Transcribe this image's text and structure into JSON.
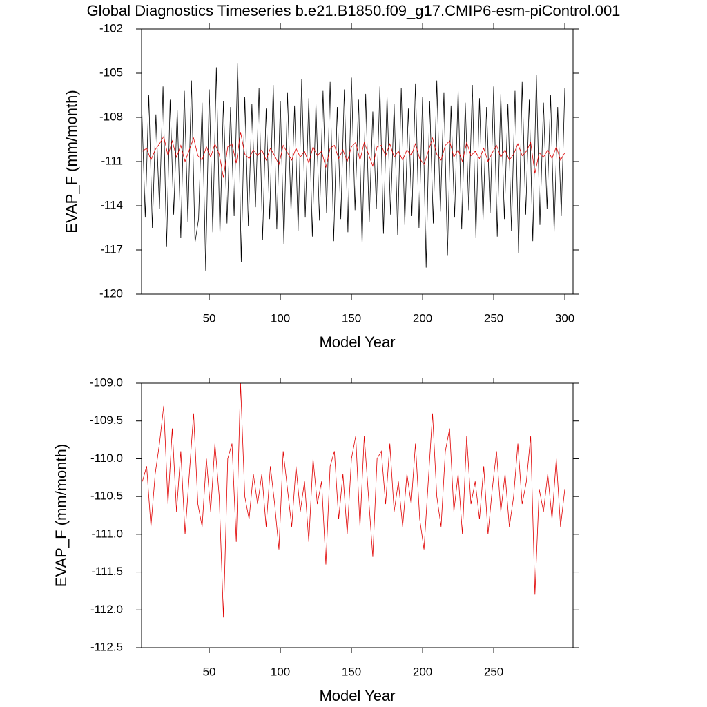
{
  "chart_data": [
    {
      "type": "line",
      "title": "Global Diagnostics Timeseries b.e21.B1850.f09_g17.CMIP6-esm-piControl.001",
      "x_label": "Model Year",
      "y_label": "EVAP_F (mm/month)",
      "xlim": [
        2.4,
        305.8
      ],
      "xticks": [
        50,
        100,
        150,
        200,
        250,
        300
      ],
      "ylim": [
        -120,
        -102
      ],
      "yticks": [
        -102,
        -105,
        -108,
        -111,
        -114,
        -117,
        -120
      ],
      "series": [
        {
          "color": "#000000",
          "x": [
            2.5,
            5,
            7.5,
            10,
            12.5,
            15,
            17.5,
            20,
            22.5,
            25,
            27.5,
            30,
            32.5,
            35,
            37.5,
            40,
            42.5,
            45,
            47.5,
            50,
            52.5,
            55,
            57.5,
            60,
            62.5,
            65,
            67.5,
            70,
            72.5,
            75,
            77.5,
            80,
            82.5,
            85,
            87.5,
            90,
            92.5,
            95,
            97.5,
            100,
            102.5,
            105,
            107.5,
            110,
            112.5,
            115,
            117.5,
            120,
            122.5,
            125,
            127.5,
            130,
            132.5,
            135,
            137.5,
            140,
            142.5,
            145,
            147.5,
            150,
            152.5,
            155,
            157.5,
            160,
            162.5,
            165,
            167.5,
            170,
            172.5,
            175,
            177.5,
            180,
            182.5,
            185,
            187.5,
            190,
            192.5,
            195,
            197.5,
            200,
            202.5,
            205,
            207.5,
            210,
            212.5,
            215,
            217.5,
            220,
            222.5,
            225,
            227.5,
            230,
            232.5,
            235,
            237.5,
            240,
            242.5,
            245,
            247.5,
            250,
            252.5,
            255,
            257.5,
            260,
            262.5,
            265,
            267.5,
            270,
            272.5,
            275,
            277.5,
            280,
            282.5,
            285,
            287.5,
            290,
            292.5,
            295,
            297.5,
            300
          ],
          "values": [
            -107.2,
            -114.8,
            -106.5,
            -115.5,
            -107.8,
            -114.2,
            -105.9,
            -116.8,
            -106.8,
            -114.6,
            -107.5,
            -116.2,
            -106.2,
            -115.1,
            -105.5,
            -116.5,
            -114.9,
            -107.0,
            -118.4,
            -106.1,
            -115.8,
            -104.6,
            -116.0,
            -106.9,
            -115.2,
            -107.3,
            -114.7,
            -104.3,
            -117.8,
            -106.6,
            -115.4,
            -107.1,
            -114.1,
            -106.0,
            -116.3,
            -107.4,
            -114.9,
            -105.8,
            -115.6,
            -106.9,
            -116.6,
            -106.3,
            -114.4,
            -107.2,
            -115.7,
            -105.4,
            -114.8,
            -106.7,
            -116.1,
            -107.0,
            -115.0,
            -106.2,
            -114.5,
            -105.6,
            -116.4,
            -107.3,
            -114.9,
            -106.1,
            -115.8,
            -105.3,
            -114.3,
            -106.8,
            -116.7,
            -106.4,
            -115.1,
            -107.6,
            -114.2,
            -105.9,
            -115.9,
            -106.5,
            -114.6,
            -107.1,
            -116.0,
            -106.0,
            -115.3,
            -107.4,
            -114.7,
            -105.7,
            -115.5,
            -106.6,
            -118.2,
            -106.9,
            -115.2,
            -105.5,
            -114.4,
            -106.3,
            -117.4,
            -107.2,
            -114.8,
            -106.1,
            -115.6,
            -107.0,
            -114.3,
            -105.8,
            -116.2,
            -106.7,
            -115.0,
            -107.3,
            -114.5,
            -105.9,
            -116.1,
            -106.4,
            -114.9,
            -107.1,
            -115.7,
            -106.2,
            -117.2,
            -105.6,
            -114.6,
            -106.8,
            -116.4,
            -105.1,
            -115.3,
            -107.0,
            -114.2,
            -106.5,
            -115.8,
            -107.3,
            -114.7,
            -106.0
          ]
        },
        {
          "color": "#e00000",
          "x": [
            3,
            6,
            9,
            12,
            15,
            18,
            21,
            24,
            27,
            30,
            33,
            36,
            39,
            42,
            45,
            48,
            51,
            54,
            57,
            60,
            63,
            66,
            69,
            72,
            75,
            78,
            81,
            84,
            87,
            90,
            93,
            96,
            99,
            102,
            105,
            108,
            111,
            114,
            117,
            120,
            123,
            126,
            129,
            132,
            135,
            138,
            141,
            144,
            147,
            150,
            153,
            156,
            159,
            162,
            165,
            168,
            171,
            174,
            177,
            180,
            183,
            186,
            189,
            192,
            195,
            198,
            201,
            204,
            207,
            210,
            213,
            216,
            219,
            222,
            225,
            228,
            231,
            234,
            237,
            240,
            243,
            246,
            249,
            252,
            255,
            258,
            261,
            264,
            267,
            270,
            273,
            276,
            279,
            282,
            285,
            288,
            291,
            294,
            297,
            300
          ],
          "values": [
            -110.3,
            -110.1,
            -110.9,
            -110.2,
            -109.8,
            -109.3,
            -110.6,
            -109.6,
            -110.7,
            -109.9,
            -111.0,
            -110.2,
            -109.4,
            -110.6,
            -110.9,
            -110.0,
            -110.7,
            -109.8,
            -110.5,
            -112.1,
            -110.0,
            -109.8,
            -111.1,
            -109.0,
            -110.5,
            -110.8,
            -110.2,
            -110.6,
            -110.2,
            -110.9,
            -110.1,
            -110.6,
            -111.2,
            -109.9,
            -110.4,
            -110.9,
            -110.1,
            -110.7,
            -110.3,
            -111.1,
            -110.0,
            -110.6,
            -110.3,
            -111.4,
            -110.1,
            -109.9,
            -110.8,
            -110.2,
            -111.0,
            -110.0,
            -109.7,
            -110.9,
            -109.7,
            -110.5,
            -111.3,
            -110.0,
            -109.9,
            -110.6,
            -109.8,
            -110.7,
            -110.3,
            -110.9,
            -110.2,
            -110.6,
            -109.8,
            -110.8,
            -111.2,
            -110.3,
            -109.4,
            -110.5,
            -110.9,
            -109.9,
            -109.6,
            -110.7,
            -110.2,
            -111.0,
            -109.7,
            -110.6,
            -110.3,
            -110.8,
            -110.1,
            -111.0,
            -110.4,
            -109.9,
            -110.7,
            -110.2,
            -110.9,
            -110.5,
            -109.8,
            -110.6,
            -110.3,
            -109.7,
            -111.8,
            -110.4,
            -110.7,
            -110.2,
            -110.8,
            -110.0,
            -110.9,
            -110.4
          ]
        }
      ]
    },
    {
      "type": "line",
      "x_label": "Model Year",
      "y_label": "EVAP_F (mm/month)",
      "xlim": [
        2.4,
        305.8
      ],
      "xticks": [
        50,
        100,
        150,
        200,
        250
      ],
      "ylim": [
        -112.5,
        -109
      ],
      "yticks": [
        {
          "value": -109,
          "label": "-109.0"
        },
        {
          "value": -109.5,
          "label": "-109.5"
        },
        {
          "value": -110,
          "label": "-110.0"
        },
        {
          "value": -110.5,
          "label": "-110.5"
        },
        {
          "value": -111,
          "label": "-111.0"
        },
        {
          "value": -111.5,
          "label": "-111.5"
        },
        {
          "value": -112,
          "label": "-112.0"
        },
        {
          "value": -112.5,
          "label": "-112.5"
        }
      ],
      "series": [
        {
          "color": "#e00000",
          "x": [
            3,
            6,
            9,
            12,
            15,
            18,
            21,
            24,
            27,
            30,
            33,
            36,
            39,
            42,
            45,
            48,
            51,
            54,
            57,
            60,
            63,
            66,
            69,
            72,
            75,
            78,
            81,
            84,
            87,
            90,
            93,
            96,
            99,
            102,
            105,
            108,
            111,
            114,
            117,
            120,
            123,
            126,
            129,
            132,
            135,
            138,
            141,
            144,
            147,
            150,
            153,
            156,
            159,
            162,
            165,
            168,
            171,
            174,
            177,
            180,
            183,
            186,
            189,
            192,
            195,
            198,
            201,
            204,
            207,
            210,
            213,
            216,
            219,
            222,
            225,
            228,
            231,
            234,
            237,
            240,
            243,
            246,
            249,
            252,
            255,
            258,
            261,
            264,
            267,
            270,
            273,
            276,
            279,
            282,
            285,
            288,
            291,
            294,
            297,
            300
          ],
          "values": [
            -110.3,
            -110.1,
            -110.9,
            -110.2,
            -109.8,
            -109.3,
            -110.6,
            -109.6,
            -110.7,
            -109.9,
            -111.0,
            -110.2,
            -109.4,
            -110.6,
            -110.9,
            -110.0,
            -110.7,
            -109.8,
            -110.5,
            -112.1,
            -110.0,
            -109.8,
            -111.1,
            -109.0,
            -110.5,
            -110.8,
            -110.2,
            -110.6,
            -110.2,
            -110.9,
            -110.1,
            -110.6,
            -111.2,
            -109.9,
            -110.4,
            -110.9,
            -110.1,
            -110.7,
            -110.3,
            -111.1,
            -110.0,
            -110.6,
            -110.3,
            -111.4,
            -110.1,
            -109.9,
            -110.8,
            -110.2,
            -111.0,
            -110.0,
            -109.7,
            -110.9,
            -109.7,
            -110.5,
            -111.3,
            -110.0,
            -109.9,
            -110.6,
            -109.8,
            -110.7,
            -110.3,
            -110.9,
            -110.2,
            -110.6,
            -109.8,
            -110.8,
            -111.2,
            -110.3,
            -109.4,
            -110.5,
            -110.9,
            -109.9,
            -109.6,
            -110.7,
            -110.2,
            -111.0,
            -109.7,
            -110.6,
            -110.3,
            -110.8,
            -110.1,
            -111.0,
            -110.4,
            -109.9,
            -110.7,
            -110.2,
            -110.9,
            -110.5,
            -109.8,
            -110.6,
            -110.3,
            -109.7,
            -111.8,
            -110.4,
            -110.7,
            -110.2,
            -110.8,
            -110.0,
            -110.9,
            -110.4
          ]
        }
      ]
    }
  ]
}
